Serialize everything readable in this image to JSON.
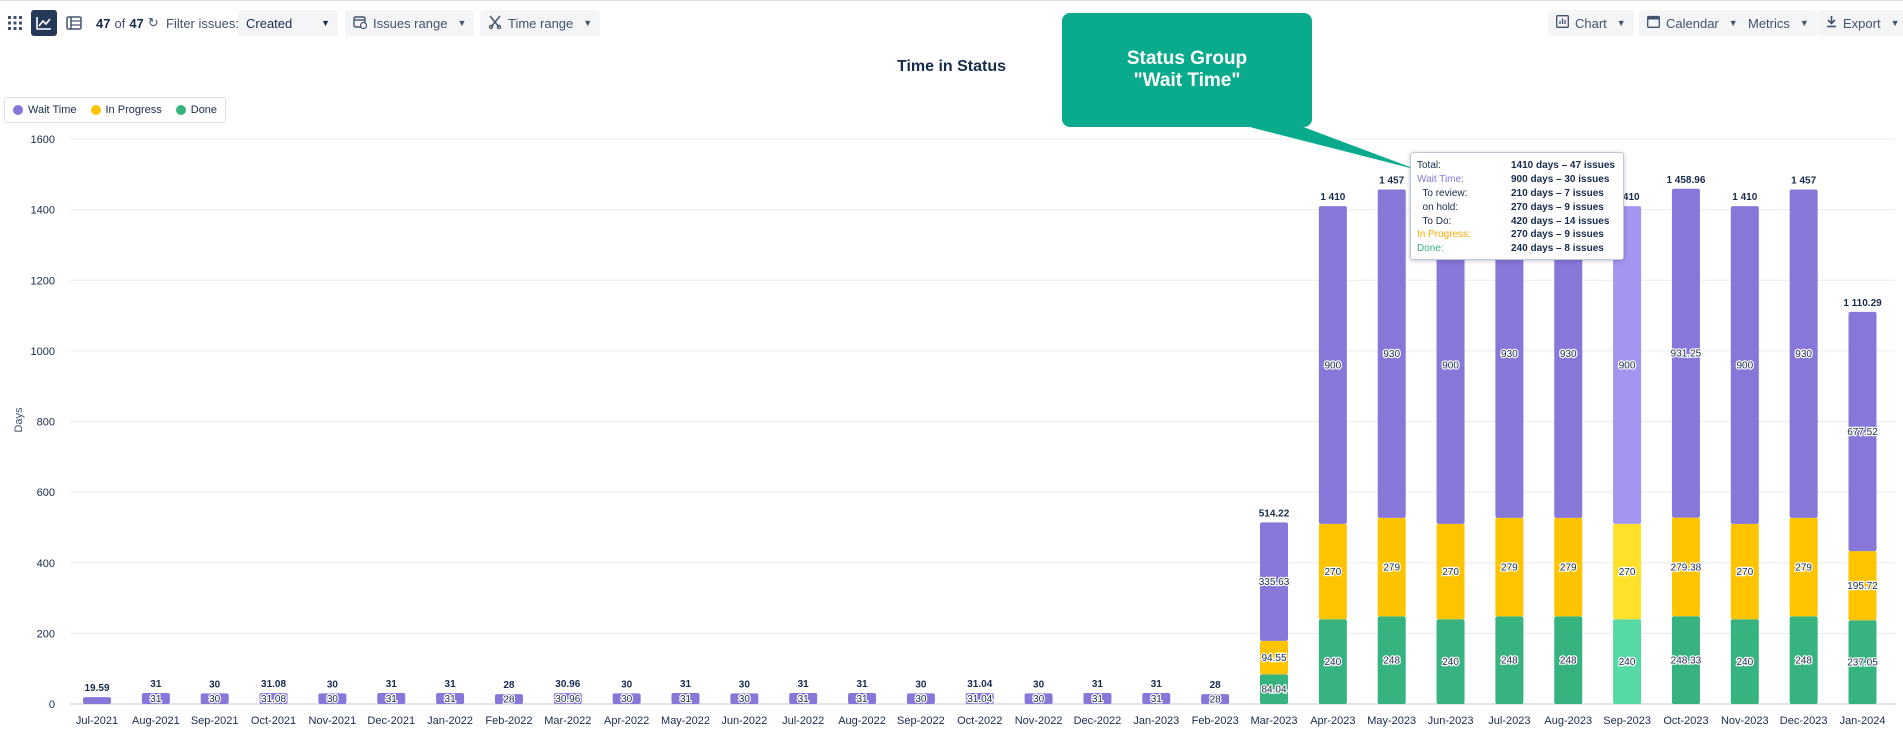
{
  "toolbar": {
    "counter_shown": "47",
    "counter_of": "of",
    "counter_total": "47",
    "filter_label": "Filter issues:",
    "filter_value": "Created",
    "issues_range": "Issues range",
    "time_range": "Time range",
    "chart_btn": "Chart",
    "calendar_btn": "Calendar",
    "metrics_btn": "Metrics",
    "export_btn": "Export"
  },
  "callout": {
    "text": "Status Group \"Wait Time\""
  },
  "tooltip": {
    "rows": [
      {
        "label": "Total:",
        "value": "1410 days – 47 issues",
        "color": "#172b4d"
      },
      {
        "label": "Wait Time:",
        "value": "900 days – 30 issues",
        "color": "#8777d9"
      },
      {
        "label": "  To review:",
        "value": "210 days – 7 issues",
        "color": "#172b4d"
      },
      {
        "label": "  on hold:",
        "value": "270 days – 9 issues",
        "color": "#172b4d"
      },
      {
        "label": "  To Do:",
        "value": "420 days – 14 issues",
        "color": "#172b4d"
      },
      {
        "label": "In Progress:",
        "value": "270 days – 9 issues",
        "color": "#ffab00"
      },
      {
        "label": "Done:",
        "value": "240 days – 8 issues",
        "color": "#36b37e"
      }
    ]
  },
  "chart_data": {
    "type": "bar",
    "stacked": true,
    "title": "Time in Status",
    "ylabel": "Days",
    "ylim": [
      0,
      1600
    ],
    "yticks": [
      0,
      200,
      400,
      600,
      800,
      1000,
      1200,
      1400,
      1600
    ],
    "grid": true,
    "legend_position": "top-left",
    "highlighted_category": "Sep-2023",
    "categories": [
      "Jul-2021",
      "Aug-2021",
      "Sep-2021",
      "Oct-2021",
      "Nov-2021",
      "Dec-2021",
      "Jan-2022",
      "Feb-2022",
      "Mar-2022",
      "Apr-2022",
      "May-2022",
      "Jun-2022",
      "Jul-2022",
      "Aug-2022",
      "Sep-2022",
      "Oct-2022",
      "Nov-2022",
      "Dec-2022",
      "Jan-2023",
      "Feb-2023",
      "Mar-2023",
      "Apr-2023",
      "May-2023",
      "Jun-2023",
      "Jul-2023",
      "Aug-2023",
      "Sep-2023",
      "Oct-2023",
      "Nov-2023",
      "Dec-2023",
      "Jan-2024"
    ],
    "series": [
      {
        "name": "Done",
        "color": "#36b37e",
        "values": [
          0,
          0,
          0,
          0,
          0,
          0,
          0,
          0,
          0,
          0,
          0,
          0,
          0,
          0,
          0,
          0,
          0,
          0,
          0,
          0,
          84.04,
          240,
          248,
          240,
          248,
          248,
          240,
          248.33,
          240,
          248,
          237.05
        ],
        "labels": [
          "",
          "",
          "",
          "",
          "",
          "",
          "",
          "",
          "",
          "",
          "",
          "",
          "",
          "",
          "",
          "",
          "",
          "",
          "",
          "",
          "84.04",
          "240",
          "248",
          "240",
          "248",
          "248",
          "240",
          "248.33",
          "240",
          "248",
          "237.05"
        ]
      },
      {
        "name": "In Progress",
        "color": "#ffc400",
        "values": [
          0,
          0,
          0,
          0,
          0,
          0,
          0,
          0,
          0,
          0,
          0,
          0,
          0,
          0,
          0,
          0,
          0,
          0,
          0,
          0,
          94.55,
          270,
          279,
          270,
          279,
          279,
          270,
          279.38,
          270,
          279,
          195.72
        ],
        "labels": [
          "",
          "",
          "",
          "",
          "",
          "",
          "",
          "",
          "",
          "",
          "",
          "",
          "",
          "",
          "",
          "",
          "",
          "",
          "",
          "",
          "94.55",
          "270",
          "279",
          "270",
          "279",
          "279",
          "270",
          "279.38",
          "270",
          "279",
          "195.72"
        ]
      },
      {
        "name": "Wait Time",
        "color": "#8777d9",
        "values": [
          19.59,
          31,
          30,
          31.08,
          30,
          31,
          31,
          28,
          30.96,
          30,
          31,
          30,
          31,
          31,
          30,
          31.04,
          30,
          31,
          31,
          28,
          335.63,
          900,
          930,
          900,
          930,
          930,
          900,
          931.25,
          900,
          930,
          677.52
        ],
        "labels": [
          "",
          "31",
          "30",
          "31.08",
          "30",
          "31",
          "31",
          "28",
          "30.96",
          "30",
          "31",
          "30",
          "31",
          "31",
          "30",
          "31.04",
          "30",
          "31",
          "31",
          "28",
          "335.63",
          "900",
          "930",
          "900",
          "930",
          "930",
          "900",
          "931.25",
          "900",
          "930",
          "677.52"
        ]
      }
    ],
    "totals": [
      "19.59",
      "31",
      "30",
      "31.08",
      "30",
      "31",
      "31",
      "28",
      "30.96",
      "30",
      "31",
      "30",
      "31",
      "31",
      "30",
      "31.04",
      "30",
      "31",
      "31",
      "28",
      "514.22",
      "1 410",
      "1 457",
      "1 410",
      "1 457",
      "1 457",
      "1 410",
      "1 458.96",
      "1 410",
      "1 457",
      "1 110.29"
    ]
  }
}
